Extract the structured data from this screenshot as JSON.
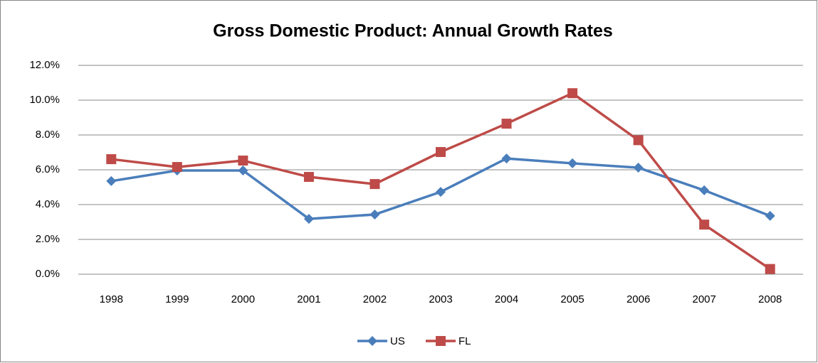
{
  "chart_data": {
    "type": "line",
    "title": "Gross Domestic Product: Annual Growth Rates",
    "categories": [
      "1998",
      "1999",
      "2000",
      "2001",
      "2002",
      "2003",
      "2004",
      "2005",
      "2006",
      "2007",
      "2008"
    ],
    "series": [
      {
        "name": "US",
        "color": "#4a7ebb",
        "marker": "diamond",
        "values": [
          5.35,
          5.96,
          5.96,
          3.18,
          3.43,
          4.73,
          6.65,
          6.37,
          6.12,
          4.82,
          3.35
        ]
      },
      {
        "name": "FL",
        "color": "#be4b48",
        "marker": "square",
        "values": [
          6.61,
          6.16,
          6.53,
          5.59,
          5.18,
          7.02,
          8.65,
          10.4,
          7.7,
          2.85,
          0.3
        ]
      }
    ],
    "ylim": [
      0,
      12
    ],
    "yticks": [
      {
        "value": 0,
        "label": "0.0%"
      },
      {
        "value": 2,
        "label": "2.0%"
      },
      {
        "value": 4,
        "label": "4.0%"
      },
      {
        "value": 6,
        "label": "6.0%"
      },
      {
        "value": 8,
        "label": "8.0%"
      },
      {
        "value": 10,
        "label": "10.0%"
      },
      {
        "value": 12,
        "label": "12.0%"
      }
    ],
    "grid": true,
    "legend": "bottom"
  }
}
